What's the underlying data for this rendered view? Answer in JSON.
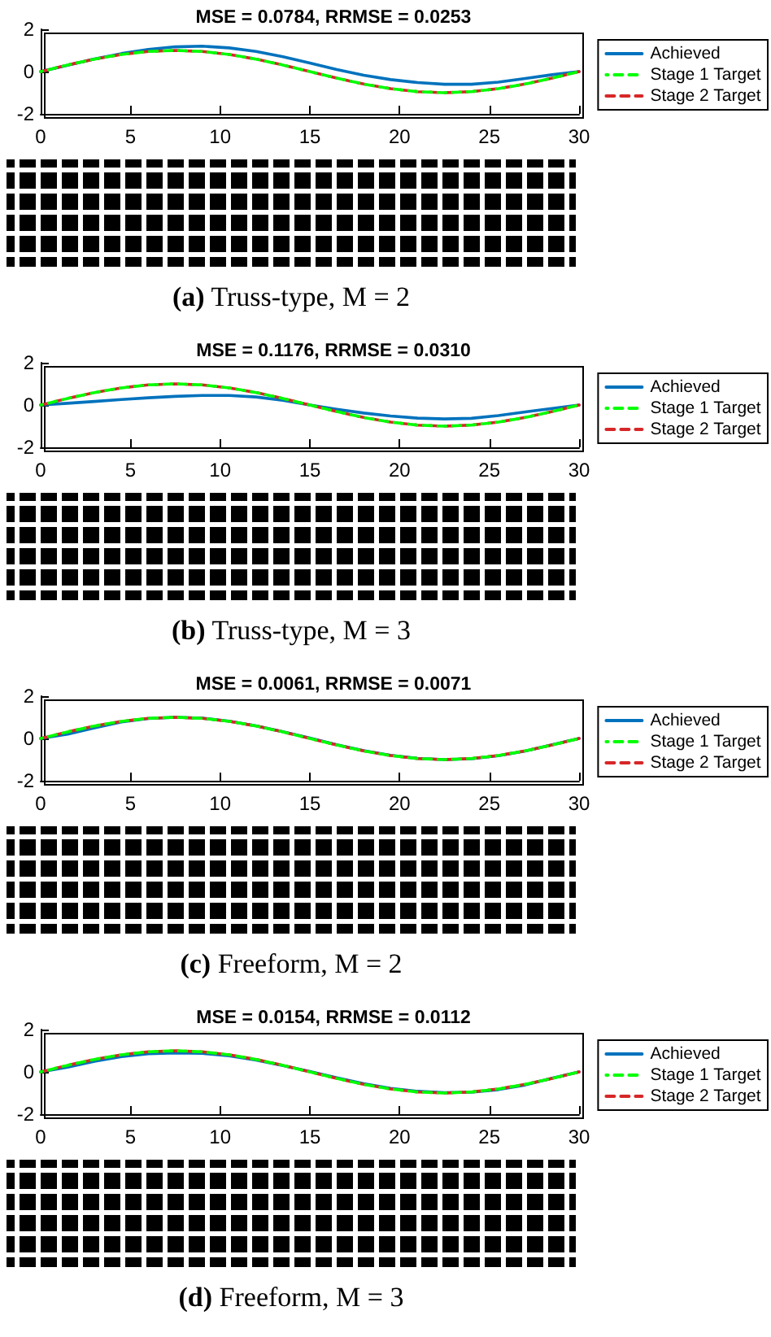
{
  "chart_data": [
    {
      "type": "line",
      "title": "MSE = 0.0784, RRMSE = 0.0253",
      "annotations": [
        "(a) Truss-type, M = 2"
      ],
      "x": [
        0,
        1.5,
        3,
        4.5,
        6,
        7.5,
        9,
        10.5,
        12,
        13.5,
        15,
        16.5,
        18,
        19.5,
        21,
        22.5,
        24,
        25.5,
        27,
        28.5,
        30
      ],
      "xlim": [
        0,
        30
      ],
      "xticks": [
        0,
        5,
        10,
        15,
        20,
        25,
        30
      ],
      "ylim": [
        -2,
        2
      ],
      "yticks": [
        -2,
        0,
        2
      ],
      "grid": false,
      "legend": "right",
      "marker": "none",
      "series": [
        {
          "name": "Achieved",
          "color": "#0072bd",
          "line_style": "solid",
          "values": [
            0,
            0.3,
            0.6,
            0.85,
            1.05,
            1.17,
            1.2,
            1.12,
            0.95,
            0.7,
            0.4,
            0.1,
            -0.17,
            -0.38,
            -0.52,
            -0.6,
            -0.6,
            -0.5,
            -0.33,
            -0.15,
            0
          ]
        },
        {
          "name": "Stage 1 Target",
          "color": "#00ff00",
          "line_style": "dashed",
          "values": [
            0,
            0.31,
            0.59,
            0.81,
            0.95,
            1,
            0.95,
            0.81,
            0.59,
            0.31,
            0,
            -0.31,
            -0.59,
            -0.81,
            -0.95,
            -1,
            -0.95,
            -0.81,
            -0.59,
            -0.31,
            0
          ]
        },
        {
          "name": "Stage 2 Target",
          "color": "#d62728",
          "line_style": "dashed",
          "values": [
            0,
            0.31,
            0.59,
            0.81,
            0.95,
            1,
            0.95,
            0.81,
            0.59,
            0.31,
            0,
            -0.31,
            -0.59,
            -0.81,
            -0.95,
            -1,
            -0.95,
            -0.81,
            -0.59,
            -0.31,
            0
          ]
        }
      ]
    },
    {
      "type": "line",
      "title": "MSE = 0.1176, RRMSE = 0.0310",
      "annotations": [
        "(b) Truss-type, M = 3"
      ],
      "x": [
        0,
        1.5,
        3,
        4.5,
        6,
        7.5,
        9,
        10.5,
        12,
        13.5,
        15,
        16.5,
        18,
        19.5,
        21,
        22.5,
        24,
        25.5,
        27,
        28.5,
        30
      ],
      "xlim": [
        0,
        30
      ],
      "xticks": [
        0,
        5,
        10,
        15,
        20,
        25,
        30
      ],
      "ylim": [
        -2,
        2
      ],
      "yticks": [
        -2,
        0,
        2
      ],
      "grid": false,
      "legend": "right",
      "marker": "none",
      "series": [
        {
          "name": "Achieved",
          "color": "#0072bd",
          "line_style": "solid",
          "values": [
            0,
            0.08,
            0.17,
            0.26,
            0.34,
            0.41,
            0.45,
            0.45,
            0.38,
            0.22,
            0,
            -0.2,
            -0.38,
            -0.52,
            -0.62,
            -0.66,
            -0.63,
            -0.5,
            -0.33,
            -0.16,
            0
          ]
        },
        {
          "name": "Stage 1 Target",
          "color": "#00ff00",
          "line_style": "dashed",
          "values": [
            0,
            0.31,
            0.59,
            0.81,
            0.95,
            1,
            0.95,
            0.81,
            0.59,
            0.31,
            0,
            -0.31,
            -0.59,
            -0.81,
            -0.95,
            -1,
            -0.95,
            -0.81,
            -0.59,
            -0.31,
            0
          ]
        },
        {
          "name": "Stage 2 Target",
          "color": "#d62728",
          "line_style": "dashed",
          "values": [
            0,
            0.31,
            0.59,
            0.81,
            0.95,
            1,
            0.95,
            0.81,
            0.59,
            0.31,
            0,
            -0.31,
            -0.59,
            -0.81,
            -0.95,
            -1,
            -0.95,
            -0.81,
            -0.59,
            -0.31,
            0
          ]
        }
      ]
    },
    {
      "type": "line",
      "title": "MSE = 0.0061, RRMSE = 0.0071",
      "annotations": [
        "(c) Freeform, M = 2"
      ],
      "x": [
        0,
        1.5,
        3,
        4.5,
        6,
        7.5,
        9,
        10.5,
        12,
        13.5,
        15,
        16.5,
        18,
        19.5,
        21,
        22.5,
        24,
        25.5,
        27,
        28.5,
        30
      ],
      "xlim": [
        0,
        30
      ],
      "xticks": [
        0,
        5,
        10,
        15,
        20,
        25,
        30
      ],
      "ylim": [
        -2,
        2
      ],
      "yticks": [
        -2,
        0,
        2
      ],
      "grid": false,
      "legend": "right",
      "marker": "none",
      "series": [
        {
          "name": "Achieved",
          "color": "#0072bd",
          "line_style": "solid",
          "values": [
            0,
            0.2,
            0.5,
            0.78,
            0.94,
            1,
            0.96,
            0.82,
            0.6,
            0.32,
            0.02,
            -0.3,
            -0.58,
            -0.8,
            -0.94,
            -1,
            -0.96,
            -0.82,
            -0.6,
            -0.3,
            0
          ]
        },
        {
          "name": "Stage 1 Target",
          "color": "#00ff00",
          "line_style": "dashed",
          "values": [
            0,
            0.31,
            0.59,
            0.81,
            0.95,
            1,
            0.95,
            0.81,
            0.59,
            0.31,
            0,
            -0.31,
            -0.59,
            -0.81,
            -0.95,
            -1,
            -0.95,
            -0.81,
            -0.59,
            -0.31,
            0
          ]
        },
        {
          "name": "Stage 2 Target",
          "color": "#d62728",
          "line_style": "dashed",
          "values": [
            0,
            0.31,
            0.59,
            0.81,
            0.95,
            1,
            0.95,
            0.81,
            0.59,
            0.31,
            0,
            -0.31,
            -0.59,
            -0.81,
            -0.95,
            -1,
            -0.95,
            -0.81,
            -0.59,
            -0.31,
            0
          ]
        }
      ]
    },
    {
      "type": "line",
      "title": "MSE = 0.0154, RRMSE = 0.0112",
      "annotations": [
        "(d) Freeform, M = 3"
      ],
      "x": [
        0,
        1.5,
        3,
        4.5,
        6,
        7.5,
        9,
        10.5,
        12,
        13.5,
        15,
        16.5,
        18,
        19.5,
        21,
        22.5,
        24,
        25.5,
        27,
        28.5,
        30
      ],
      "xlim": [
        0,
        30
      ],
      "xticks": [
        0,
        5,
        10,
        15,
        20,
        25,
        30
      ],
      "ylim": [
        -2,
        2
      ],
      "yticks": [
        -2,
        0,
        2
      ],
      "grid": false,
      "legend": "right",
      "marker": "none",
      "series": [
        {
          "name": "Achieved",
          "color": "#0072bd",
          "line_style": "solid",
          "values": [
            0,
            0.22,
            0.5,
            0.72,
            0.86,
            0.9,
            0.88,
            0.76,
            0.56,
            0.3,
            0.02,
            -0.28,
            -0.56,
            -0.78,
            -0.92,
            -0.98,
            -0.96,
            -0.84,
            -0.62,
            -0.3,
            0
          ]
        },
        {
          "name": "Stage 1 Target",
          "color": "#00ff00",
          "line_style": "dashed",
          "values": [
            0,
            0.31,
            0.59,
            0.81,
            0.95,
            1,
            0.95,
            0.81,
            0.59,
            0.31,
            0,
            -0.31,
            -0.59,
            -0.81,
            -0.95,
            -1,
            -0.95,
            -0.81,
            -0.59,
            -0.31,
            0
          ]
        },
        {
          "name": "Stage 2 Target",
          "color": "#d62728",
          "line_style": "dashed",
          "values": [
            0,
            0.31,
            0.59,
            0.81,
            0.95,
            1,
            0.95,
            0.81,
            0.59,
            0.31,
            0,
            -0.31,
            -0.59,
            -0.81,
            -0.95,
            -1,
            -0.95,
            -0.81,
            -0.59,
            -0.31,
            0
          ]
        }
      ]
    }
  ]
}
